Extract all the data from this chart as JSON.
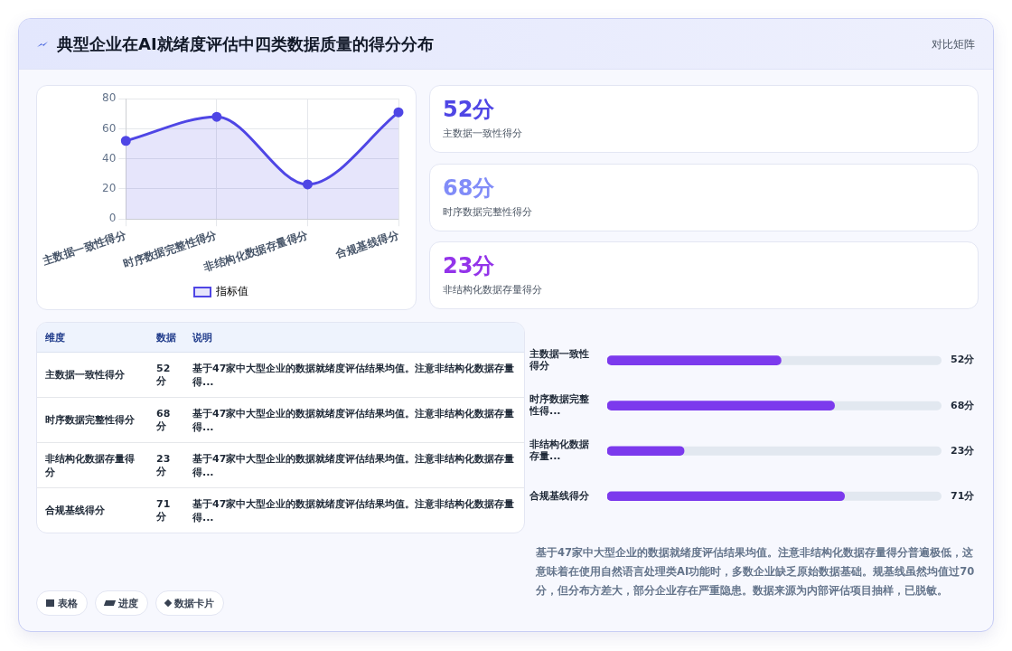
{
  "chart_data": [
    {
      "type": "other",
      "title": "典型企业在AI就绪度评估中四类数据质量的得分分布",
      "subtitle": "对比矩阵"
    },
    {
      "type": "area",
      "categories": [
        "主数据一致性得分",
        "时序数据完整性得分",
        "非结构化数据存量得分",
        "合规基线得分"
      ],
      "series": [
        {
          "name": "指标值",
          "color": "#4f46e5",
          "values": [
            52,
            68,
            23,
            71
          ]
        }
      ],
      "ylim": [
        0,
        80
      ],
      "yticks": [
        0,
        20,
        40,
        60,
        80
      ],
      "grid": true,
      "legend": "bottom",
      "marker": "circle"
    },
    {
      "type": "other",
      "categories": [
        "主数据一致性得分",
        "时序数据完整性得分",
        "非结构化数据存量得分"
      ],
      "values": [
        52,
        68,
        23
      ],
      "value_labels": [
        "52分",
        "68分",
        "23分"
      ]
    },
    {
      "type": "other",
      "categories": [
        "主数据一致性得分",
        "时序数据完整性得分",
        "非结构化数据存量得分",
        "合规基线得分"
      ],
      "values": [
        52,
        68,
        23,
        71
      ],
      "value_labels": [
        "52分",
        "68分",
        "23分",
        "71分"
      ],
      "annotations": [
        "维度",
        "数据",
        "说明",
        "基于47家中大型企业的数据就绪度评估结果均值。注意非结构化数据存量得...",
        "基于47家中大型企业的数据就绪度评估结果均值。注意非结构化数据存量得...",
        "基于47家中大型企业的数据就绪度评估结果均值。注意非结构化数据存量得...",
        "基于47家中大型企业的数据就绪度评估结果均值。注意非结构化数据存量得..."
      ]
    },
    {
      "type": "bar",
      "orientation": "horizontal",
      "categories": [
        "主数据一致性得分",
        "时序数据完整性得...",
        "非结构化数据存量...",
        "合规基线得分"
      ],
      "values": [
        52,
        68,
        23,
        71
      ],
      "value_labels": [
        "52分",
        "68分",
        "23分",
        "71分"
      ],
      "color": "#7c3aed",
      "xlim": [
        0,
        100
      ],
      "tick_labels": "y",
      "annotations": [
        "基于47家中大型企业的数据就绪度评估结果均值。注意非结构化数据存量得分普遍极低，这意味着在使用自然语言处理类AI功能时，多数企业缺乏原始数据基础。规基线虽然均值过70分，但分布方差大，部分企业存在严重隐患。数据来源为内部评估项目抽样，已脱敏。"
      ]
    },
    {
      "type": "other",
      "categories": [
        "表格",
        "进度",
        "数据卡片"
      ]
    }
  ]
}
